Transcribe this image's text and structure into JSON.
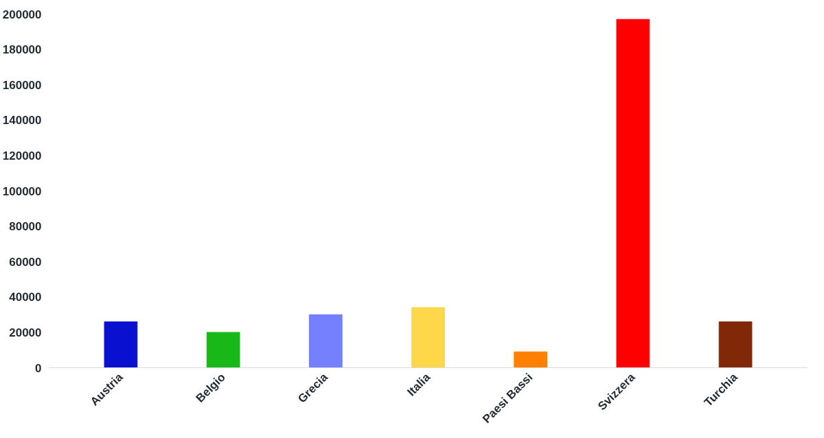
{
  "chart_data": {
    "type": "bar",
    "categories": [
      "Austria",
      "Belgio",
      "Grecia",
      "Italia",
      "Paesi Bassi",
      "Svizzera",
      "Turchia"
    ],
    "values": [
      26000,
      20000,
      30000,
      34000,
      9000,
      197000,
      26000
    ],
    "colors": [
      "#0a10d0",
      "#18b818",
      "#7480ff",
      "#ffd84a",
      "#ff8000",
      "#ff0000",
      "#802808"
    ],
    "ylim": [
      0,
      200000
    ],
    "yticks": [
      0,
      20000,
      40000,
      60000,
      80000,
      100000,
      120000,
      140000,
      160000,
      180000,
      200000
    ],
    "grid": false
  }
}
